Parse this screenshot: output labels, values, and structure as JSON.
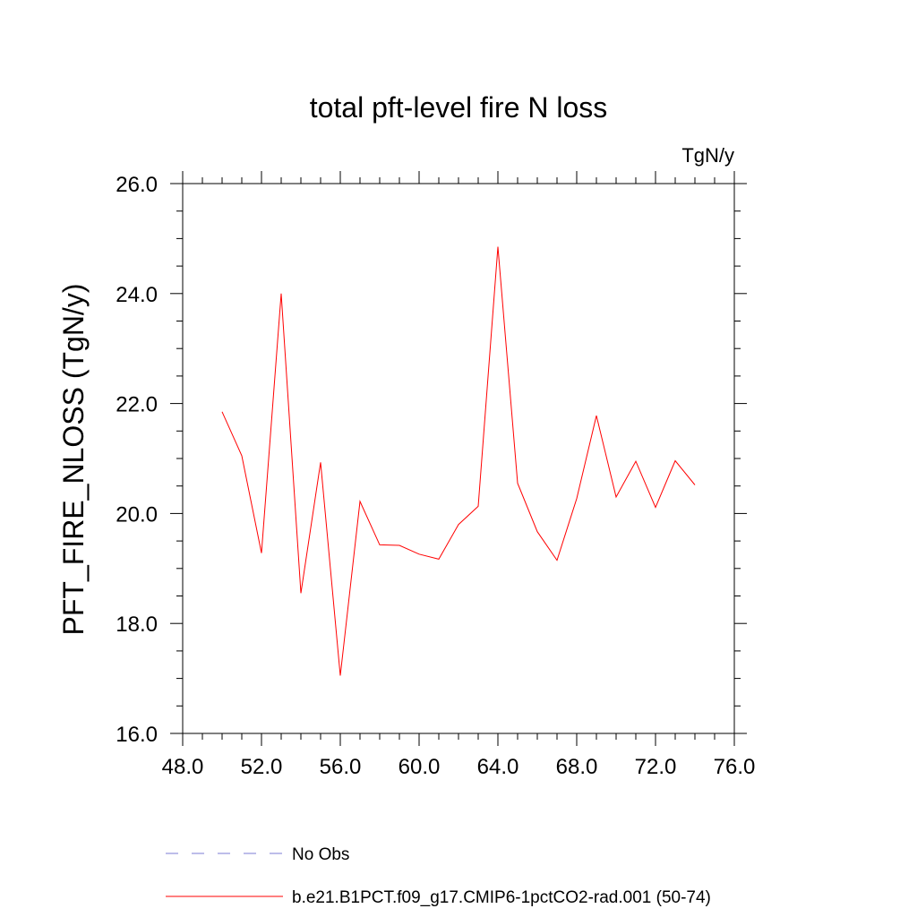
{
  "chart_data": {
    "type": "line",
    "title": "total pft-level fire N loss",
    "units_label": "TgN/y",
    "xlabel": "",
    "ylabel": "PFT_FIRE_NLOSS  (TgN/y)",
    "xlim": [
      48,
      76
    ],
    "ylim": [
      16,
      26
    ],
    "x_ticks": [
      48.0,
      52.0,
      56.0,
      60.0,
      64.0,
      68.0,
      72.0,
      76.0
    ],
    "x_tick_labels": [
      "48.0",
      "52.0",
      "56.0",
      "60.0",
      "64.0",
      "68.0",
      "72.0",
      "76.0"
    ],
    "y_ticks": [
      16.0,
      18.0,
      20.0,
      22.0,
      24.0,
      26.0
    ],
    "y_tick_labels": [
      "16.0",
      "18.0",
      "20.0",
      "22.0",
      "24.0",
      "26.0"
    ],
    "grid": false,
    "legend_position": "bottom",
    "series": [
      {
        "name": "b.e21.B1PCT.f09_g17.CMIP6-1pctCO2-rad.001 (50-74)",
        "color": "#ff0000",
        "style": "solid",
        "x": [
          50,
          51,
          52,
          53,
          54,
          55,
          56,
          57,
          58,
          59,
          60,
          61,
          62,
          63,
          64,
          65,
          66,
          67,
          68,
          69,
          70,
          71,
          72,
          73,
          74
        ],
        "y": [
          21.85,
          21.05,
          19.28,
          24.0,
          18.55,
          20.93,
          17.05,
          20.22,
          19.43,
          19.42,
          19.26,
          19.17,
          19.8,
          20.13,
          24.85,
          20.55,
          19.67,
          19.15,
          20.27,
          21.78,
          20.3,
          20.95,
          20.11,
          20.96,
          20.52
        ]
      }
    ],
    "legend": [
      {
        "label": "No Obs",
        "color": "#7b7bd6",
        "style": "dashed"
      },
      {
        "label": "b.e21.B1PCT.f09_g17.CMIP6-1pctCO2-rad.001 (50-74)",
        "color": "#ff0000",
        "style": "solid"
      }
    ]
  }
}
